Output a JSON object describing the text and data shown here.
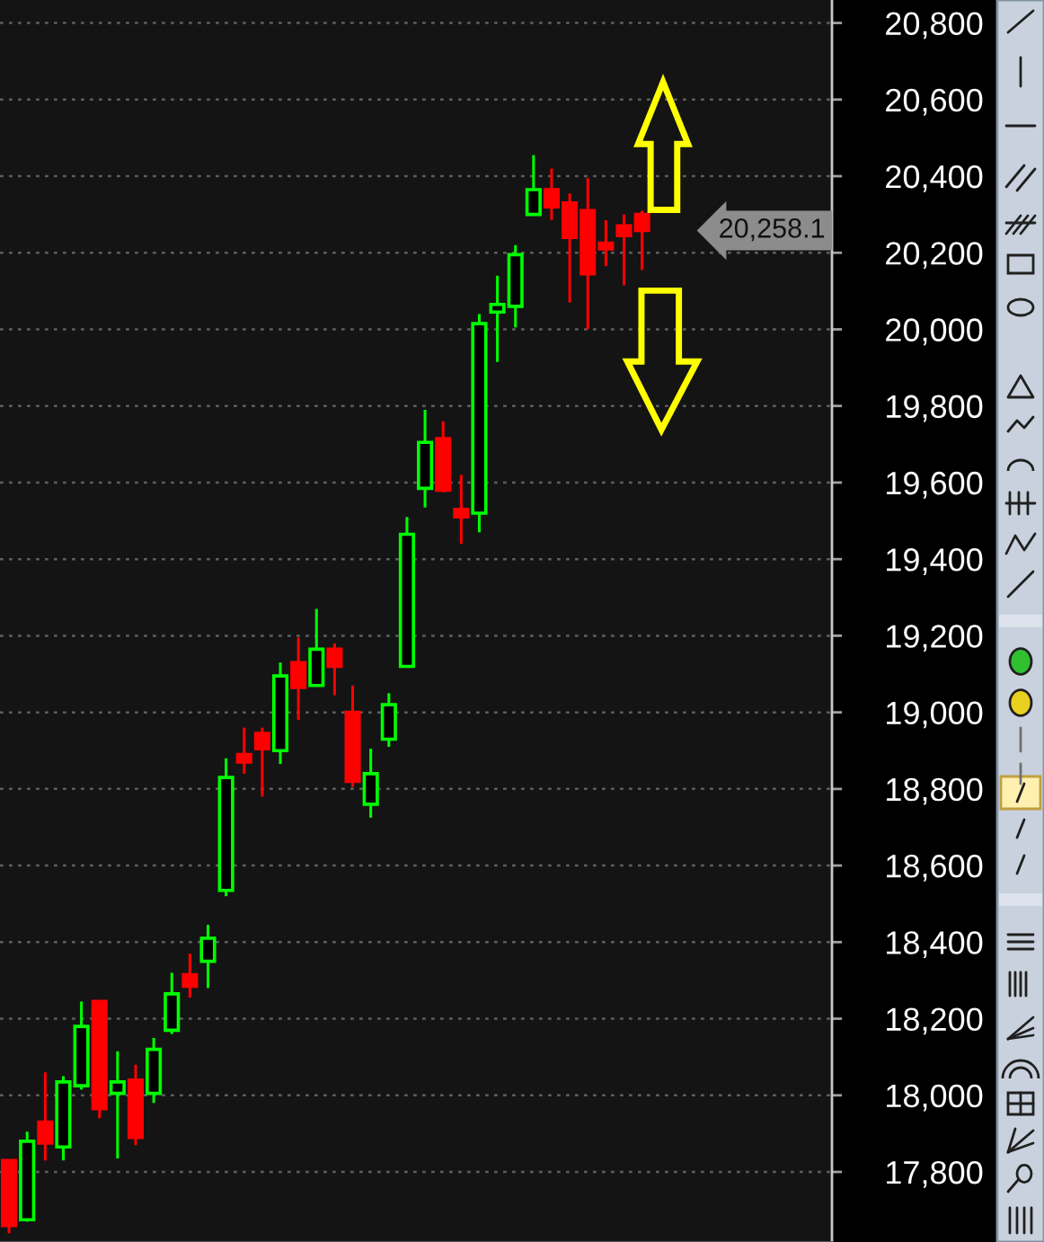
{
  "chart_data": {
    "type": "candlestick",
    "categories": [
      null,
      null,
      null,
      null,
      null,
      null,
      null,
      null,
      null,
      null,
      null,
      null,
      null,
      null,
      null,
      null,
      null,
      null,
      null,
      null,
      null,
      null,
      null,
      null,
      null,
      null,
      null,
      null,
      null,
      null,
      null,
      null,
      null,
      null,
      null,
      null,
      null,
      null,
      null,
      null,
      null,
      null,
      null,
      null,
      null,
      null
    ],
    "ohlc": [
      [
        17830,
        17830,
        17640,
        17660
      ],
      [
        17675,
        17905,
        17670,
        17880
      ],
      [
        17930,
        18060,
        17830,
        17875
      ],
      [
        17865,
        18050,
        17830,
        18035
      ],
      [
        18025,
        18245,
        18015,
        18180
      ],
      [
        18245,
        18245,
        17940,
        17965
      ],
      [
        18005,
        18115,
        17835,
        18035
      ],
      [
        18040,
        18080,
        17870,
        17890
      ],
      [
        18005,
        18150,
        17980,
        18120
      ],
      [
        18170,
        18320,
        18160,
        18265
      ],
      [
        18315,
        18370,
        18255,
        18285
      ],
      [
        18350,
        18445,
        18280,
        18410
      ],
      [
        18535,
        18880,
        18520,
        18830
      ],
      [
        18890,
        18960,
        18840,
        18870
      ],
      [
        18945,
        18960,
        18780,
        18905
      ],
      [
        18900,
        19130,
        18865,
        19095
      ],
      [
        19130,
        19195,
        18980,
        19065
      ],
      [
        19070,
        19270,
        19070,
        19165
      ],
      [
        19165,
        19180,
        19045,
        19120
      ],
      [
        19000,
        19070,
        18805,
        18820
      ],
      [
        18760,
        18905,
        18725,
        18840
      ],
      [
        18930,
        19050,
        18910,
        19020
      ],
      [
        19120,
        19510,
        19120,
        19465
      ],
      [
        19585,
        19790,
        19535,
        19705
      ],
      [
        19715,
        19760,
        19575,
        19580
      ],
      [
        19530,
        19620,
        19440,
        19510
      ],
      [
        19520,
        20040,
        19470,
        20015
      ],
      [
        20045,
        20140,
        19915,
        20065
      ],
      [
        20060,
        20220,
        20005,
        20195
      ],
      [
        20300,
        20455,
        20300,
        20365
      ],
      [
        20365,
        20420,
        20285,
        20320
      ],
      [
        20330,
        20355,
        20070,
        20240
      ],
      [
        20310,
        20395,
        20000,
        20145
      ],
      [
        20225,
        20285,
        20165,
        20210
      ],
      [
        20270,
        20300,
        20115,
        20245
      ],
      [
        20300,
        20310,
        20155,
        20258.1
      ],
      null,
      null,
      null,
      null,
      null,
      null,
      null,
      null,
      null,
      null
    ],
    "colors": [
      "#ff0000",
      "#00ff00",
      "#ff0000",
      "#00ff00",
      "#00ff00",
      "#ff0000",
      "#00ff00",
      "#ff0000",
      "#00ff00",
      "#00ff00",
      "#ff0000",
      "#00ff00",
      "#00ff00",
      "#ff0000",
      "#ff0000",
      "#00ff00",
      "#ff0000",
      "#00ff00",
      "#ff0000",
      "#ff0000",
      "#00ff00",
      "#00ff00",
      "#00ff00",
      "#00ff00",
      "#ff0000",
      "#ff0000",
      "#00ff00",
      "#00ff00",
      "#00ff00",
      "#00ff00",
      "#ff0000",
      "#ff0000",
      "#ff0000",
      "#ff0000",
      "#ff0000",
      "#ff0000",
      null,
      null,
      null,
      null,
      null,
      null,
      null,
      null,
      null,
      null
    ],
    "ylim": [
      17617,
      20860
    ],
    "yticks": [
      {
        "value": 17800,
        "label": "17,800"
      },
      {
        "value": 18000,
        "label": "18,000"
      },
      {
        "value": 18200,
        "label": "18,200"
      },
      {
        "value": 18400,
        "label": "18,400"
      },
      {
        "value": 18600,
        "label": "18,600"
      },
      {
        "value": 18800,
        "label": "18,800"
      },
      {
        "value": 19000,
        "label": "19,000"
      },
      {
        "value": 19200,
        "label": "19,200"
      },
      {
        "value": 19400,
        "label": "19,400"
      },
      {
        "value": 19600,
        "label": "19,600"
      },
      {
        "value": 19800,
        "label": "19,800"
      },
      {
        "value": 20000,
        "label": "20,000"
      },
      {
        "value": 20200,
        "label": "20,200"
      },
      {
        "value": 20400,
        "label": "20,400"
      },
      {
        "value": 20600,
        "label": "20,600"
      },
      {
        "value": 20800,
        "label": "20,800"
      }
    ],
    "grid": "y",
    "tick_labels": "y",
    "annotations": [
      "20,258.1"
    ]
  }
}
